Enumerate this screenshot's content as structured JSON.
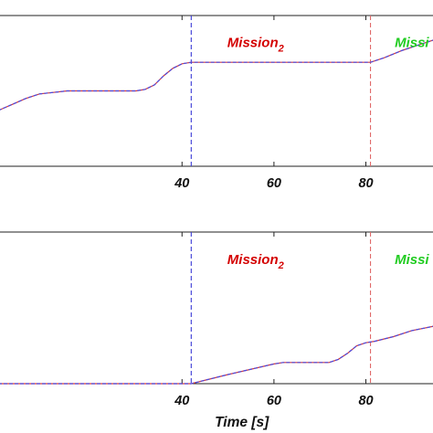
{
  "chart_data": [
    {
      "type": "line",
      "xlabel": "",
      "xlim": [
        0,
        95
      ],
      "ylim": [
        0,
        1
      ],
      "xticks": [
        40,
        60,
        80
      ],
      "tick_labels": [
        "40",
        "60",
        "80"
      ],
      "vlines": [
        {
          "x": 42,
          "color": "#3b3bd6",
          "style": "dashed"
        },
        {
          "x": 81,
          "color": "#e06a6a",
          "style": "dashed"
        }
      ],
      "annotations": [
        {
          "text": "Mission",
          "subscript": "2",
          "x": 56,
          "y": 0.82,
          "color": "#d40000"
        },
        {
          "text": "Missi",
          "subscript": "",
          "x": 90,
          "y": 0.82,
          "color": "#22cc22"
        }
      ],
      "series": [
        {
          "color": "#d43b3b",
          "style": "solid",
          "x": [
            0,
            3,
            6,
            9,
            12,
            15,
            18,
            21,
            24,
            27,
            30,
            32,
            34,
            36,
            38,
            40,
            42,
            50,
            60,
            70,
            81,
            84,
            88,
            92,
            95
          ],
          "y": [
            0.37,
            0.41,
            0.45,
            0.48,
            0.49,
            0.5,
            0.5,
            0.5,
            0.5,
            0.5,
            0.5,
            0.51,
            0.54,
            0.6,
            0.65,
            0.68,
            0.69,
            0.69,
            0.69,
            0.69,
            0.69,
            0.72,
            0.77,
            0.81,
            0.84
          ]
        },
        {
          "color": "#4a4ae0",
          "style": "dashed",
          "x": [
            0,
            3,
            6,
            9,
            12,
            15,
            18,
            21,
            24,
            27,
            30,
            32,
            34,
            36,
            38,
            40,
            42,
            50,
            60,
            70,
            81,
            84,
            88,
            92,
            95
          ],
          "y": [
            0.37,
            0.41,
            0.45,
            0.48,
            0.49,
            0.5,
            0.5,
            0.5,
            0.5,
            0.5,
            0.5,
            0.51,
            0.54,
            0.6,
            0.65,
            0.68,
            0.69,
            0.69,
            0.69,
            0.69,
            0.69,
            0.72,
            0.77,
            0.81,
            0.84
          ]
        }
      ]
    },
    {
      "type": "line",
      "xlabel": "Time [s]",
      "xlim": [
        0,
        95
      ],
      "ylim": [
        0,
        1
      ],
      "xticks": [
        40,
        60,
        80
      ],
      "tick_labels": [
        "40",
        "60",
        "80"
      ],
      "vlines": [
        {
          "x": 42,
          "color": "#3b3bd6",
          "style": "dashed"
        },
        {
          "x": 81,
          "color": "#e06a6a",
          "style": "dashed"
        }
      ],
      "annotations": [
        {
          "text": "Mission",
          "subscript": "2",
          "x": 56,
          "y": 0.82,
          "color": "#d40000"
        },
        {
          "text": "Missi",
          "subscript": "",
          "x": 90,
          "y": 0.82,
          "color": "#22cc22"
        }
      ],
      "series": [
        {
          "color": "#d43b3b",
          "style": "solid",
          "x": [
            0,
            42,
            50,
            60,
            62,
            65,
            70,
            72,
            74,
            76,
            78,
            80,
            82,
            86,
            90,
            95
          ],
          "y": [
            0.0,
            0.0,
            0.06,
            0.13,
            0.14,
            0.14,
            0.14,
            0.14,
            0.16,
            0.2,
            0.25,
            0.27,
            0.28,
            0.31,
            0.35,
            0.38
          ]
        },
        {
          "color": "#4a4ae0",
          "style": "dashed",
          "x": [
            0,
            42,
            50,
            60,
            62,
            65,
            70,
            72,
            74,
            76,
            78,
            80,
            82,
            86,
            90,
            95
          ],
          "y": [
            0.0,
            0.0,
            0.06,
            0.13,
            0.14,
            0.14,
            0.14,
            0.14,
            0.16,
            0.2,
            0.25,
            0.27,
            0.28,
            0.31,
            0.35,
            0.38
          ]
        }
      ]
    }
  ]
}
